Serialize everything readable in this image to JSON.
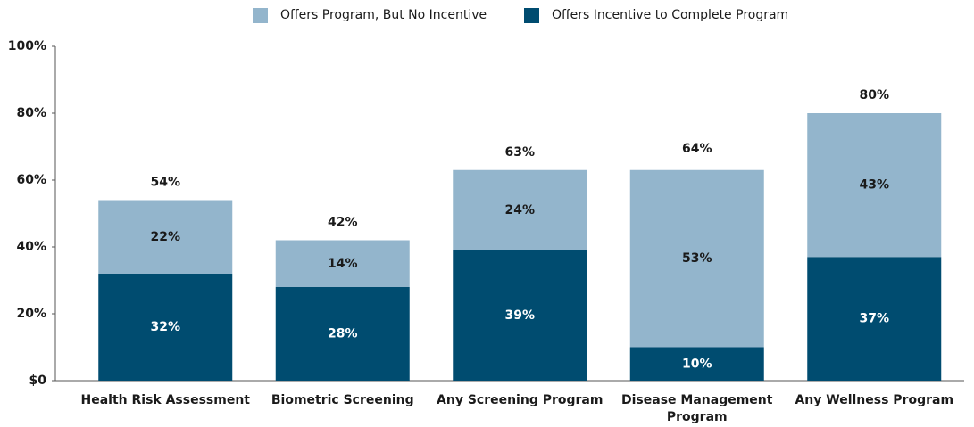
{
  "chart_data": {
    "type": "stacked_bar",
    "categories": [
      "Health Risk Assessment",
      "Biometric Screening",
      "Any Screening Program",
      "Disease Management Program",
      "Any Wellness Program"
    ],
    "series": [
      {
        "name": "Offers Incentive to Complete Program",
        "color": "#004c70",
        "label_color": "#ffffff",
        "values": [
          32,
          28,
          39,
          10,
          37
        ],
        "value_labels": [
          "32%",
          "28%",
          "39%",
          "10%",
          "37%"
        ]
      },
      {
        "name": "Offers Program, But No Incentive",
        "color": "#93b5cc",
        "label_color": "#1a1a1a",
        "values": [
          22,
          14,
          24,
          53,
          43
        ],
        "value_labels": [
          "22%",
          "14%",
          "24%",
          "53%",
          "43%"
        ]
      }
    ],
    "totals": [
      54,
      42,
      63,
      64,
      80
    ],
    "total_labels": [
      "54%",
      "42%",
      "63%",
      "64%",
      "80%"
    ],
    "ylim": [
      0,
      100
    ],
    "yticks": [
      {
        "value": 0,
        "label": "$0"
      },
      {
        "value": 20,
        "label": "20%"
      },
      {
        "value": 40,
        "label": "40%"
      },
      {
        "value": 60,
        "label": "60%"
      },
      {
        "value": 80,
        "label": "80%"
      },
      {
        "value": 100,
        "label": "100%"
      }
    ],
    "legend": "top"
  }
}
